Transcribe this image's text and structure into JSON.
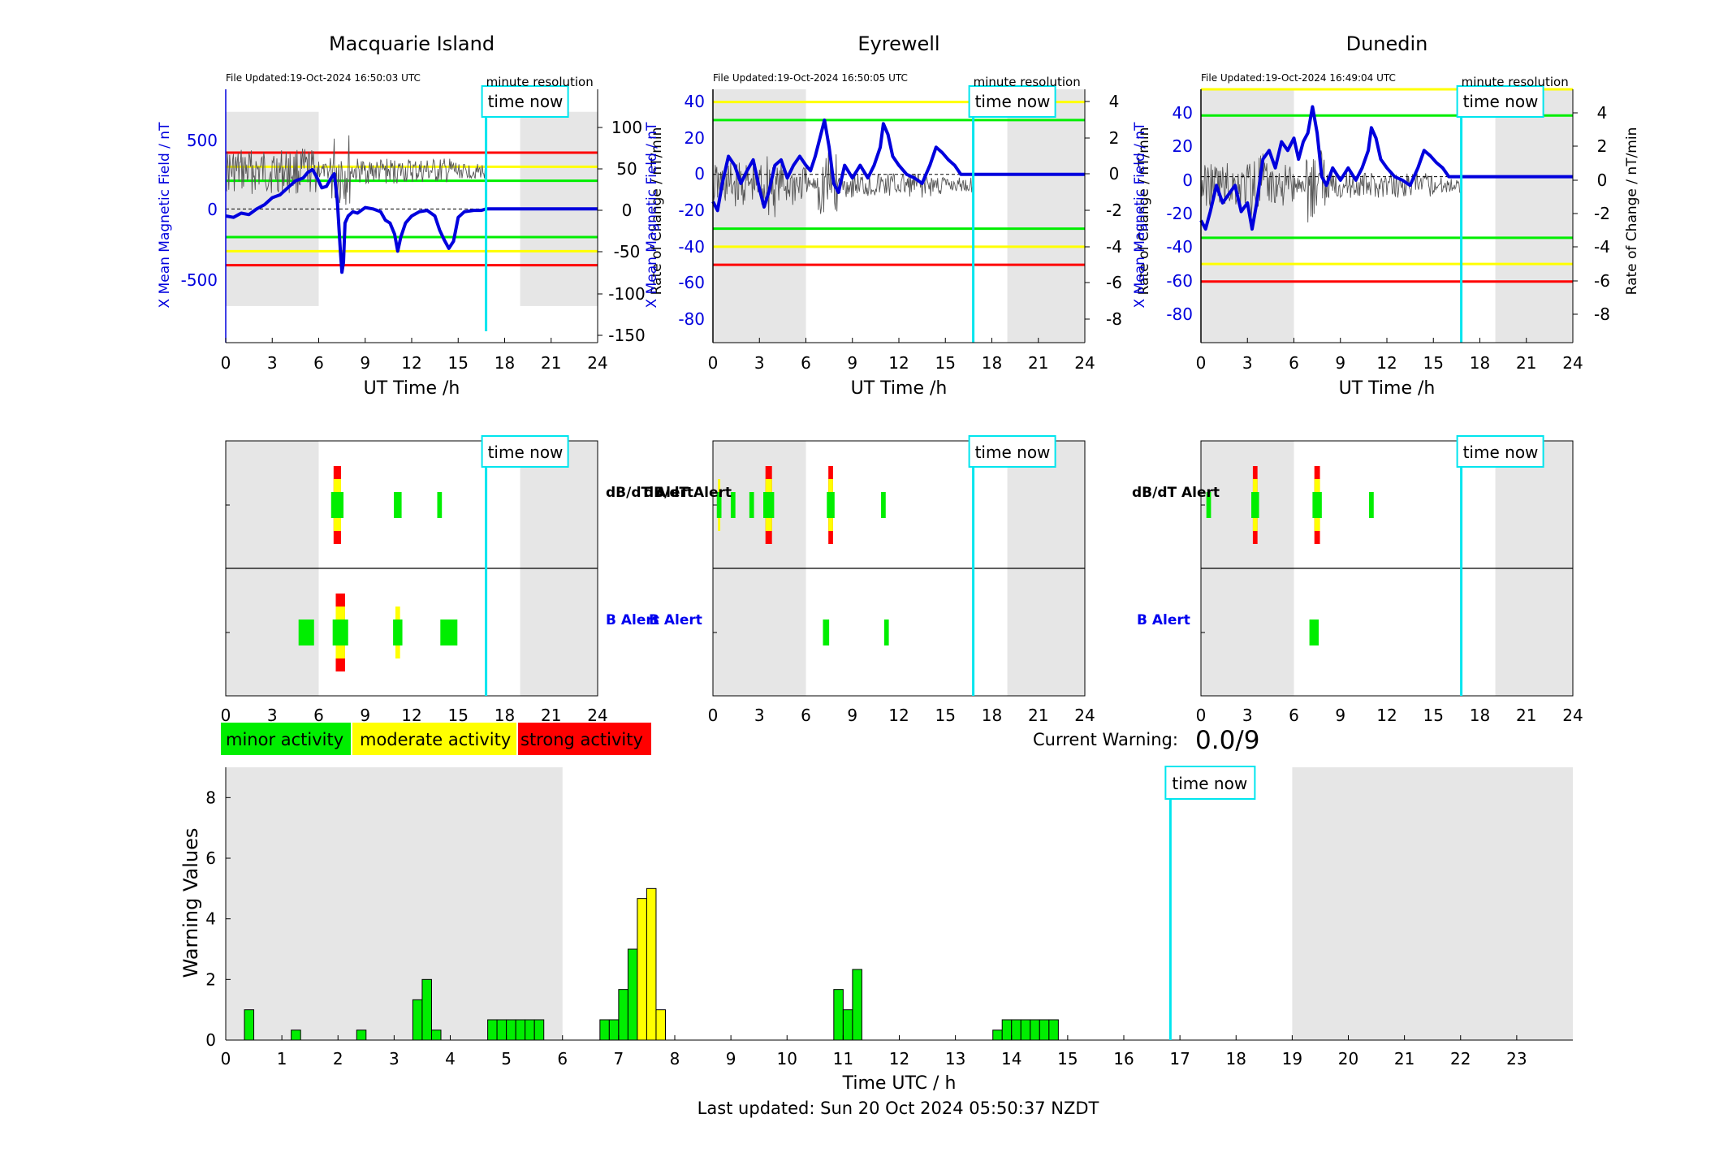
{
  "colors": {
    "field_line": "#0000dd",
    "rate_line": "#555555",
    "minor": "#00ee00",
    "moderate": "#ffff00",
    "strong": "#ff0000",
    "time_now": "#00e5ee",
    "night_shade": "#e6e6e6"
  },
  "stations": [
    {
      "name": "Macquarie Island",
      "file_updated": "File Updated:19-Oct-2024 16:50:03 UTC",
      "resolution": "minute resolution",
      "ylabel_left": "X Mean Magnetic Field / nT",
      "ylabel_right": "Rate of Change / nT/min",
      "yticks_left": [
        "500",
        "0",
        "-500"
      ],
      "yticks_right": [
        "100",
        "50",
        "0",
        "-50",
        "-100",
        "-150"
      ],
      "xlabel": "UT Time /h",
      "xticks": [
        "0",
        "3",
        "6",
        "9",
        "12",
        "15",
        "18",
        "21",
        "24"
      ]
    },
    {
      "name": "Eyrewell",
      "file_updated": "File Updated:19-Oct-2024 16:50:05 UTC",
      "resolution": "minute resolution",
      "ylabel_left": "X Mean Magnetic Field / nT",
      "ylabel_right": "Rate of Change / nT/min",
      "yticks_left": [
        "40",
        "20",
        "0",
        "-20",
        "-40",
        "-60",
        "-80"
      ],
      "yticks_right": [
        "4",
        "2",
        "0",
        "-2",
        "-4",
        "-6",
        "-8"
      ],
      "xlabel": "UT Time /h",
      "xticks": [
        "0",
        "3",
        "6",
        "9",
        "12",
        "15",
        "18",
        "21",
        "24"
      ]
    },
    {
      "name": "Dunedin",
      "file_updated": "File Updated:19-Oct-2024 16:49:04 UTC",
      "resolution": "minute resolution",
      "ylabel_left": "X Mean Magnetic Field / nT",
      "ylabel_right": "Rate of Change / nT/min",
      "yticks_left": [
        "40",
        "20",
        "0",
        "-20",
        "-40",
        "-60",
        "-80"
      ],
      "yticks_right": [
        "4",
        "2",
        "0",
        "-2",
        "-4",
        "-6",
        "-8"
      ],
      "xlabel": "UT Time /h",
      "xticks": [
        "0",
        "3",
        "6",
        "9",
        "12",
        "15",
        "18",
        "21",
        "24"
      ]
    }
  ],
  "time_now_label": "time now",
  "alert_labels": {
    "dbdt": "dB/dT Alert",
    "b": "B Alert"
  },
  "alert_xticks": [
    "0",
    "3",
    "6",
    "9",
    "12",
    "15",
    "18",
    "21",
    "24"
  ],
  "legend": {
    "minor": "minor activity",
    "moderate": "moderate activity",
    "strong": "strong activity"
  },
  "current_warning": {
    "label": "Current Warning:",
    "value": "0.0/9"
  },
  "footer": "Last updated: Sun 20 Oct 2024 05:50:37 NZDT",
  "chart_data": [
    {
      "type": "line",
      "title": "Macquarie Island",
      "xlabel": "UT Time /h",
      "ylabel": "X Mean Magnetic Field / nT",
      "ylabel_right": "Rate of Change / nT/min",
      "xlim": [
        0,
        24
      ],
      "ylim": [
        -950,
        850
      ],
      "ylim_right": [
        -157,
        140
      ],
      "night_shade_hours": [
        [
          0,
          6
        ],
        [
          19,
          24
        ]
      ],
      "night_shade_value_range": [
        -690,
        690
      ],
      "time_now_hour": 16.8,
      "threshold_lines": [
        {
          "color": "#ff0000",
          "values": [
            400,
            -400
          ]
        },
        {
          "color": "#ffff00",
          "values": [
            300,
            -300
          ]
        },
        {
          "color": "#00ee00",
          "values": [
            200,
            -200
          ]
        }
      ],
      "series": [
        {
          "name": "X Mean Magnetic Field",
          "x": [
            0,
            0.5,
            1,
            1.5,
            2,
            2.5,
            3,
            3.5,
            4,
            4.5,
            5,
            5.3,
            5.6,
            5.9,
            6.2,
            6.5,
            6.8,
            7.0,
            7.2,
            7.4,
            7.5,
            7.6,
            7.7,
            7.9,
            8.2,
            8.5,
            9,
            9.5,
            10,
            10.3,
            10.6,
            10.9,
            11.1,
            11.3,
            11.6,
            12,
            12.5,
            13,
            13.5,
            13.8,
            14.1,
            14.4,
            14.7,
            15.0,
            15.4,
            16,
            16.5,
            16.8,
            24
          ],
          "y": [
            -50,
            -60,
            -30,
            -40,
            0,
            30,
            80,
            100,
            150,
            200,
            220,
            260,
            280,
            220,
            150,
            160,
            220,
            250,
            60,
            -300,
            -450,
            -380,
            -100,
            -50,
            -20,
            -30,
            10,
            0,
            -20,
            -80,
            -100,
            -180,
            -300,
            -200,
            -100,
            -50,
            -20,
            -10,
            -50,
            -150,
            -220,
            -280,
            -230,
            -60,
            -20,
            -10,
            -10,
            0,
            0
          ]
        }
      ]
    },
    {
      "type": "line",
      "title": "Eyrewell",
      "xlabel": "UT Time /h",
      "ylabel": "X Mean Magnetic Field / nT",
      "ylabel_right": "Rate of Change / nT/min",
      "xlim": [
        0,
        24
      ],
      "ylim": [
        -93,
        47
      ],
      "ylim_right": [
        -9.3,
        4.7
      ],
      "night_shade_hours": [
        [
          0,
          6
        ],
        [
          19,
          24
        ]
      ],
      "night_shade_value_range": [
        -93,
        47
      ],
      "time_now_hour": 16.8,
      "threshold_lines": [
        {
          "color": "#ffff00",
          "values": [
            40,
            -40
          ]
        },
        {
          "color": "#00ee00",
          "values": [
            30,
            -30
          ]
        },
        {
          "color": "#ff0000",
          "values": [
            -50
          ]
        }
      ],
      "series": [
        {
          "name": "X Mean Magnetic Field",
          "x": [
            0,
            0.3,
            0.6,
            1,
            1.4,
            1.8,
            2.2,
            2.6,
            3,
            3.3,
            3.6,
            4,
            4.4,
            4.8,
            5.2,
            5.6,
            6,
            6.3,
            6.6,
            6.9,
            7.2,
            7.5,
            7.8,
            8.1,
            8.5,
            9,
            9.5,
            10,
            10.4,
            10.8,
            11.0,
            11.3,
            11.6,
            12,
            12.5,
            13,
            13.5,
            14,
            14.4,
            14.8,
            15.2,
            15.6,
            16,
            16.4,
            16.8,
            24
          ],
          "y": [
            -15,
            -20,
            -5,
            10,
            5,
            -5,
            2,
            8,
            -8,
            -18,
            -10,
            5,
            8,
            -2,
            5,
            10,
            5,
            2,
            10,
            20,
            30,
            15,
            -5,
            -10,
            5,
            -2,
            5,
            -2,
            5,
            15,
            28,
            22,
            10,
            5,
            0,
            -2,
            -5,
            5,
            15,
            12,
            8,
            5,
            0,
            0,
            0,
            0
          ]
        }
      ]
    },
    {
      "type": "line",
      "title": "Dunedin",
      "xlabel": "UT Time /h",
      "ylabel": "X Mean Magnetic Field / nT",
      "ylabel_right": "Rate of Change / nT/min",
      "xlim": [
        0,
        24
      ],
      "ylim": [
        -95,
        50
      ],
      "ylim_right": [
        -9.5,
        5
      ],
      "night_shade_hours": [
        [
          0,
          6
        ],
        [
          19,
          24
        ]
      ],
      "night_shade_value_range": [
        -95,
        50
      ],
      "time_now_hour": 16.8,
      "threshold_lines": [
        {
          "color": "#ffff00",
          "values": [
            50,
            -50
          ]
        },
        {
          "color": "#00ee00",
          "values": [
            35,
            -35
          ]
        },
        {
          "color": "#ff0000",
          "values": [
            -60
          ]
        }
      ],
      "series": [
        {
          "name": "X Mean Magnetic Field",
          "x": [
            0,
            0.3,
            0.6,
            1,
            1.4,
            1.8,
            2.2,
            2.6,
            3,
            3.3,
            3.6,
            4,
            4.4,
            4.8,
            5.2,
            5.6,
            6,
            6.3,
            6.6,
            6.9,
            7.2,
            7.5,
            7.8,
            8.1,
            8.5,
            9,
            9.5,
            10,
            10.4,
            10.8,
            11.0,
            11.3,
            11.6,
            12,
            12.5,
            13,
            13.5,
            14,
            14.4,
            14.8,
            15.2,
            15.6,
            16,
            16.4,
            16.8,
            24
          ],
          "y": [
            -25,
            -30,
            -20,
            -5,
            -15,
            -10,
            -5,
            -20,
            -15,
            -30,
            -15,
            10,
            15,
            5,
            20,
            15,
            22,
            10,
            20,
            25,
            40,
            25,
            0,
            -5,
            5,
            -2,
            5,
            -2,
            5,
            15,
            28,
            22,
            10,
            5,
            0,
            -2,
            -5,
            5,
            15,
            12,
            8,
            5,
            0,
            0,
            0,
            0
          ]
        }
      ]
    },
    {
      "type": "bar",
      "title": "",
      "xlabel": "Time UTC / h",
      "ylabel": "Warning Values",
      "xlim": [
        0,
        24
      ],
      "ylim": [
        0,
        9
      ],
      "xticks": [
        "0",
        "1",
        "2",
        "3",
        "4",
        "5",
        "6",
        "7",
        "8",
        "9",
        "10",
        "11",
        "12",
        "13",
        "14",
        "15",
        "16",
        "17",
        "18",
        "19",
        "20",
        "21",
        "22",
        "23"
      ],
      "yticks": [
        "0",
        "2",
        "4",
        "6",
        "8"
      ],
      "night_shade_hours": [
        [
          0,
          6
        ],
        [
          19,
          24
        ]
      ],
      "time_now_hour": 16.83,
      "bar_width_hours": 0.1667,
      "bars": [
        {
          "x": 0.333,
          "value": 1,
          "level": "minor"
        },
        {
          "x": 1.167,
          "value": 0.33,
          "level": "minor"
        },
        {
          "x": 2.333,
          "value": 0.33,
          "level": "minor"
        },
        {
          "x": 3.333,
          "value": 1.33,
          "level": "minor"
        },
        {
          "x": 3.5,
          "value": 2,
          "level": "minor"
        },
        {
          "x": 3.667,
          "value": 0.33,
          "level": "minor"
        },
        {
          "x": 4.667,
          "value": 0.67,
          "level": "minor"
        },
        {
          "x": 4.833,
          "value": 0.67,
          "level": "minor"
        },
        {
          "x": 5.0,
          "value": 0.67,
          "level": "minor"
        },
        {
          "x": 5.167,
          "value": 0.67,
          "level": "minor"
        },
        {
          "x": 5.333,
          "value": 0.67,
          "level": "minor"
        },
        {
          "x": 5.5,
          "value": 0.67,
          "level": "minor"
        },
        {
          "x": 6.667,
          "value": 0.67,
          "level": "minor"
        },
        {
          "x": 6.833,
          "value": 0.67,
          "level": "minor"
        },
        {
          "x": 7.0,
          "value": 1.67,
          "level": "minor"
        },
        {
          "x": 7.167,
          "value": 3,
          "level": "minor"
        },
        {
          "x": 7.333,
          "value": 4.67,
          "level": "moderate"
        },
        {
          "x": 7.5,
          "value": 5,
          "level": "moderate"
        },
        {
          "x": 7.667,
          "value": 1,
          "level": "moderate"
        },
        {
          "x": 10.833,
          "value": 1.67,
          "level": "minor"
        },
        {
          "x": 11.0,
          "value": 1,
          "level": "minor"
        },
        {
          "x": 11.167,
          "value": 2.33,
          "level": "minor"
        },
        {
          "x": 13.667,
          "value": 0.33,
          "level": "minor"
        },
        {
          "x": 13.833,
          "value": 0.67,
          "level": "minor"
        },
        {
          "x": 14.0,
          "value": 0.67,
          "level": "minor"
        },
        {
          "x": 14.167,
          "value": 0.67,
          "level": "minor"
        },
        {
          "x": 14.333,
          "value": 0.67,
          "level": "minor"
        },
        {
          "x": 14.5,
          "value": 0.67,
          "level": "minor"
        },
        {
          "x": 14.667,
          "value": 0.67,
          "level": "minor"
        }
      ]
    },
    {
      "type": "heatmap",
      "title": "",
      "description_free": true,
      "xlim": [
        0,
        24
      ],
      "stations": [
        "Macquarie Island",
        "Eyrewell",
        "Dunedin"
      ],
      "dbdt_alerts": [
        [
          {
            "x": 7.2,
            "w": 0.8,
            "level": "strong"
          },
          {
            "x": 11.1,
            "w": 0.5,
            "level": "minor"
          },
          {
            "x": 13.8,
            "w": 0.3,
            "level": "minor"
          }
        ],
        [
          {
            "x": 0.4,
            "w": 0.3,
            "level": "moderate"
          },
          {
            "x": 1.3,
            "w": 0.3,
            "level": "minor"
          },
          {
            "x": 2.5,
            "w": 0.3,
            "level": "minor"
          },
          {
            "x": 3.6,
            "w": 0.7,
            "level": "strong"
          },
          {
            "x": 7.6,
            "w": 0.5,
            "level": "strong"
          },
          {
            "x": 11.0,
            "w": 0.3,
            "level": "minor"
          }
        ],
        [
          {
            "x": 0.5,
            "w": 0.3,
            "level": "minor"
          },
          {
            "x": 3.5,
            "w": 0.5,
            "level": "strong"
          },
          {
            "x": 7.5,
            "w": 0.6,
            "level": "strong"
          },
          {
            "x": 11.0,
            "w": 0.3,
            "level": "minor"
          }
        ]
      ],
      "b_alerts": [
        [
          {
            "x": 5.2,
            "w": 1.0,
            "level": "minor"
          },
          {
            "x": 7.4,
            "w": 1.0,
            "level": "strong"
          },
          {
            "x": 11.1,
            "w": 0.6,
            "level": "moderate"
          },
          {
            "x": 14.4,
            "w": 1.1,
            "level": "minor"
          }
        ],
        [
          {
            "x": 7.3,
            "w": 0.4,
            "level": "minor"
          },
          {
            "x": 11.2,
            "w": 0.3,
            "level": "minor"
          }
        ],
        [
          {
            "x": 7.3,
            "w": 0.6,
            "level": "minor"
          }
        ]
      ]
    }
  ]
}
